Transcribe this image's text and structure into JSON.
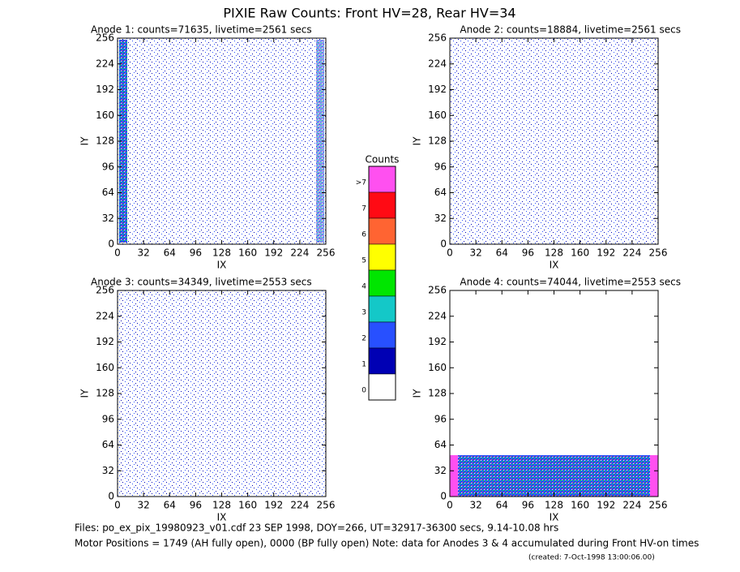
{
  "title": "PIXIE Raw Counts:  Front HV=28, Rear HV=34",
  "panels": [
    {
      "title": "Anode 1: counts=71635, livetime=2561 secs",
      "xlabel": "IX",
      "ylabel": "IY",
      "xlim": [
        0,
        256
      ],
      "ylim": [
        0,
        256
      ],
      "xticks": [
        0,
        32,
        64,
        96,
        128,
        160,
        192,
        224,
        256
      ],
      "yticks": [
        0,
        32,
        64,
        96,
        128,
        160,
        192,
        224,
        256
      ]
    },
    {
      "title": "Anode 2: counts=18884, livetime=2561 secs",
      "xlabel": "IX",
      "ylabel": "IY",
      "xlim": [
        0,
        256
      ],
      "ylim": [
        0,
        256
      ],
      "xticks": [
        0,
        32,
        64,
        96,
        128,
        160,
        192,
        224,
        256
      ],
      "yticks": [
        0,
        32,
        64,
        96,
        128,
        160,
        192,
        224,
        256
      ]
    },
    {
      "title": "Anode 3: counts=34349, livetime=2553 secs",
      "xlabel": "IX",
      "ylabel": "IY",
      "xlim": [
        0,
        256
      ],
      "ylim": [
        0,
        256
      ],
      "xticks": [
        0,
        32,
        64,
        96,
        128,
        160,
        192,
        224,
        256
      ],
      "yticks": [
        0,
        32,
        64,
        96,
        128,
        160,
        192,
        224,
        256
      ]
    },
    {
      "title": "Anode 4: counts=74044, livetime=2553 secs",
      "xlabel": "IX",
      "ylabel": "IY",
      "xlim": [
        0,
        256
      ],
      "ylim": [
        0,
        256
      ],
      "xticks": [
        0,
        32,
        64,
        96,
        128,
        160,
        192,
        224,
        256
      ],
      "yticks": [
        0,
        32,
        64,
        96,
        128,
        160,
        192,
        224,
        256
      ]
    }
  ],
  "colorbar": {
    "title": "Counts",
    "levels": [
      {
        "label": ">7",
        "color": "#ff50f0"
      },
      {
        "label": "7",
        "color": "#ff0a14"
      },
      {
        "label": "6",
        "color": "#ff6432"
      },
      {
        "label": "5",
        "color": "#ffff00"
      },
      {
        "label": "4",
        "color": "#00e600"
      },
      {
        "label": "3",
        "color": "#14c8c8"
      },
      {
        "label": "2",
        "color": "#2850ff"
      },
      {
        "label": "1",
        "color": "#0000b4"
      },
      {
        "label": "0",
        "color": "#ffffff"
      }
    ]
  },
  "footer": {
    "files": "Files: po_ex_pix_19980923_v01.cdf    23 SEP 1998, DOY=266, UT=32917-36300 secs,  9.14-10.08 hrs",
    "motor": "Motor Positions = 1749 (AH fully open), 0000 (BP fully open)    Note: data for Anodes 3 & 4 accumulated during Front HV-on times",
    "created": "(created:  7-Oct-1998 13:00:06.00)"
  }
}
